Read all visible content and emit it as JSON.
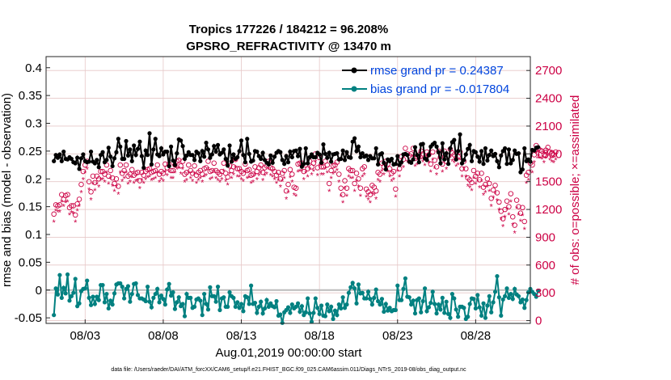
{
  "chart_data": {
    "type": "line",
    "title": "Tropics 177226 / 184212 = 96.208%",
    "subtitle": "GPSRO_REFRACTIVITY @ 13470 m",
    "ylabel_left": "rmse and bias (model - observation)",
    "ylabel_right": "# of obs: o=possible; ×=assimilated",
    "xlabel": "Aug.01,2019 00:00:00 start",
    "footer": "data file: /Users/raeder/DAI/ATM_forcXX/CAM6_setup/f.e21.FHIST_BGC.f09_025.CAM6assim.011/Diags_NTrS_2019-08/obs_diag_output.nc",
    "ylim_left": [
      -0.06,
      0.42
    ],
    "yticks_left": [
      "0.4",
      "0.35",
      "0.3",
      "0.25",
      "0.2",
      "0.15",
      "0.1",
      "0.05",
      "0",
      "-0.05"
    ],
    "ytick_values_left": [
      0.4,
      0.35,
      0.3,
      0.25,
      0.2,
      0.15,
      0.1,
      0.05,
      0,
      -0.05
    ],
    "ylim_right": [
      -30,
      2850
    ],
    "yticks_right": [
      "2700",
      "2400",
      "2100",
      "1800",
      "1500",
      "1200",
      "900",
      "600",
      "300",
      "0"
    ],
    "ytick_values_right": [
      2700,
      2400,
      2100,
      1800,
      1500,
      1200,
      900,
      600,
      300,
      0
    ],
    "xlim": [
      0.5,
      31.5
    ],
    "xticks": [
      "08/03",
      "08/08",
      "08/13",
      "08/18",
      "08/23",
      "08/28"
    ],
    "xtick_values": [
      3,
      8,
      13,
      18,
      23,
      28
    ],
    "legend": [
      {
        "label": "rmse grand pr = 0.24387",
        "color": "#000000"
      },
      {
        "label": "bias grand pr = -0.017804",
        "color": "#008080"
      }
    ],
    "colors": {
      "rmse": "#000000",
      "bias": "#008080",
      "obs": "#cc0044",
      "zero_line": "#bbbbbb",
      "grid": "#e6c8c8"
    },
    "series": [
      {
        "name": "rmse",
        "values": [
          0.232,
          0.243,
          0.238,
          0.244,
          0.232,
          0.249,
          0.236,
          0.235,
          0.239,
          0.236,
          0.23,
          0.228,
          0.238,
          0.218,
          0.237,
          0.244,
          0.232,
          0.23,
          0.231,
          0.249,
          0.231,
          0.228,
          0.234,
          0.221,
          0.243,
          0.248,
          0.23,
          0.234,
          0.256,
          0.24,
          0.223,
          0.237,
          0.248,
          0.272,
          0.258,
          0.236,
          0.236,
          0.268,
          0.242,
          0.253,
          0.232,
          0.26,
          0.243,
          0.254,
          0.267,
          0.241,
          0.22,
          0.251,
          0.243,
          0.282,
          0.226,
          0.253,
          0.272,
          0.244,
          0.241,
          0.255,
          0.244,
          0.249,
          0.249,
          0.223,
          0.258,
          0.233,
          0.225,
          0.246,
          0.271,
          0.269,
          0.259,
          0.236,
          0.242,
          0.248,
          0.243,
          0.243,
          0.234,
          0.249,
          0.246,
          0.232,
          0.25,
          0.24,
          0.265,
          0.253,
          0.238,
          0.244,
          0.259,
          0.249,
          0.261,
          0.244,
          0.247,
          0.253,
          0.236,
          0.224,
          0.26,
          0.231,
          0.244,
          0.236,
          0.239,
          0.25,
          0.269,
          0.243,
          0.23,
          0.272,
          0.245,
          0.231,
          0.233,
          0.25,
          0.249,
          0.241,
          0.236,
          0.247,
          0.234,
          0.229,
          0.226,
          0.242,
          0.229,
          0.24,
          0.247,
          0.25,
          0.248,
          0.234,
          0.227,
          0.241,
          0.23,
          0.249,
          0.239,
          0.25,
          0.251,
          0.241,
          0.254,
          0.222,
          0.227,
          0.255,
          0.228,
          0.239,
          0.244,
          0.239,
          0.239,
          0.247,
          0.244,
          0.229,
          0.262,
          0.245,
          0.238,
          0.247,
          0.231,
          0.244,
          0.245,
          0.246,
          0.235,
          0.236,
          0.251,
          0.234,
          0.248,
          0.239,
          0.238,
          0.267,
          0.273,
          0.25,
          0.258,
          0.239,
          0.246,
          0.24,
          0.242,
          0.234,
          0.241,
          0.237,
          0.237,
          0.255,
          0.226,
          0.244,
          0.246,
          0.229,
          0.217,
          0.235,
          0.232,
          0.236,
          0.226,
          0.227,
          0.241,
          0.225,
          0.23,
          0.244,
          0.245,
          0.243,
          0.231,
          0.229,
          0.235,
          0.257,
          0.243,
          0.23,
          0.262,
          0.263,
          0.237,
          0.234,
          0.243,
          0.258,
          0.262,
          0.265,
          0.258,
          0.248,
          0.228,
          0.264,
          0.235,
          0.246,
          0.227,
          0.255,
          0.266,
          0.27,
          0.235,
          0.25,
          0.28,
          0.228,
          0.234,
          0.244,
          0.254,
          0.261,
          0.232,
          0.25,
          0.248,
          0.24,
          0.231,
          0.25,
          0.227,
          0.255,
          0.233,
          0.243,
          0.251,
          0.241,
          0.245,
          0.232,
          0.221,
          0.242,
          0.25,
          0.255,
          0.227,
          0.253,
          0.228,
          0.234,
          0.251,
          0.245,
          0.246,
          0.212,
          0.217,
          0.255,
          0.232,
          0.235,
          0.231,
          0.252,
          0.251,
          0.256,
          0.257
        ]
      },
      {
        "name": "bias",
        "values": [
          -0.045,
          0.003,
          -0.008,
          0.027,
          -0.014,
          0.004,
          -0.006,
          0.028,
          -0.019,
          -0.011,
          -0.005,
          0.02,
          -0.029,
          -0.024,
          -0.002,
          0.002,
          0.003,
          0.017,
          -0.014,
          -0.027,
          -0.012,
          -0.025,
          -0.012,
          -0.018,
          0.009,
          0.009,
          -0.022,
          -0.007,
          -0.033,
          -0.019,
          -0.026,
          -0.006,
          0.01,
          0.012,
          0.012,
          0.006,
          -0.015,
          0.002,
          0.007,
          -0.021,
          -0.007,
          0.011,
          0.012,
          -0.009,
          -0.015,
          -0.015,
          -0.017,
          -0.02,
          0.006,
          -0.021,
          -0.031,
          -0.014,
          -0.007,
          0.002,
          -0.022,
          -0.01,
          -0.016,
          -0.026,
          0.001,
          0.011,
          -0.01,
          -0.004,
          -0.034,
          -0.022,
          -0.013,
          -0.029,
          -0.025,
          -0.047,
          -0.007,
          -0.014,
          -0.014,
          -0.032,
          -0.03,
          -0.017,
          -0.015,
          -0.019,
          -0.045,
          -0.007,
          -0.025,
          -0.035,
          0.005,
          -0.011,
          -0.011,
          -0.021,
          0.006,
          -0.036,
          -0.015,
          -0.013,
          -0.03,
          -0.03,
          -0.004,
          -0.011,
          -0.014,
          -0.03,
          -0.022,
          -0.032,
          -0.025,
          -0.038,
          -0.011,
          -0.013,
          -0.025,
          0.008,
          -0.025,
          -0.023,
          -0.041,
          -0.03,
          -0.021,
          -0.042,
          -0.033,
          -0.018,
          -0.03,
          -0.024,
          -0.029,
          -0.031,
          -0.02,
          -0.046,
          -0.044,
          -0.059,
          -0.04,
          -0.036,
          -0.031,
          -0.041,
          -0.026,
          -0.033,
          -0.03,
          -0.024,
          -0.039,
          -0.029,
          -0.045,
          -0.04,
          -0.015,
          -0.042,
          -0.057,
          -0.041,
          -0.015,
          -0.032,
          -0.043,
          -0.028,
          -0.046,
          -0.047,
          -0.026,
          -0.038,
          -0.03,
          -0.052,
          -0.037,
          -0.045,
          -0.026,
          -0.033,
          -0.013,
          -0.032,
          -0.026,
          -0.005,
          0.005,
          0.013,
          0.003,
          -0.024,
          0.01,
          -0.006,
          -0.005,
          -0.015,
          -0.015,
          -0.003,
          -0.016,
          -0.026,
          -0.014,
          0.001,
          -0.02,
          -0.026,
          -0.016,
          -0.039,
          -0.025,
          -0.037,
          -0.032,
          -0.038,
          -0.036,
          -0.036,
          0.008,
          -0.018,
          -0.018,
          0.002,
          0.021,
          -0.012,
          -0.013,
          -0.026,
          -0.019,
          -0.042,
          -0.018,
          -0.015,
          -0.04,
          -0.02,
          0.003,
          -0.038,
          -0.031,
          -0.023,
          -0.003,
          -0.025,
          -0.042,
          -0.026,
          -0.035,
          -0.014,
          -0.041,
          -0.021,
          -0.043,
          -0.05,
          -0.007,
          -0.015,
          -0.035,
          -0.048,
          -0.03,
          -0.03,
          -0.032,
          -0.052,
          -0.048,
          -0.025,
          -0.015,
          -0.016,
          -0.033,
          -0.009,
          -0.031,
          -0.046,
          -0.024,
          -0.05,
          -0.028,
          -0.011,
          -0.04,
          -0.022,
          -0.003,
          0.025,
          -0.013,
          -0.046,
          -0.017,
          -0.011,
          0.003,
          -0.014,
          -0.007,
          -0.016,
          0.002,
          -0.008,
          -0.011,
          -0.022,
          -0.017,
          -0.032,
          -0.018,
          -0.004,
          0.002,
          -0.003,
          -0.007,
          -0.012,
          -0.001
        ]
      },
      {
        "name": "obs_possible",
        "values": [
          1150,
          1250,
          1240,
          1250,
          1360,
          1310,
          1350,
          1360,
          1220,
          1240,
          1240,
          1140,
          1260,
          1310,
          1470,
          1610,
          1680,
          1720,
          1500,
          1390,
          1560,
          1490,
          1560,
          1530,
          1610,
          1610,
          1580,
          1680,
          1560,
          1620,
          1540,
          1480,
          1530,
          1450,
          1680,
          1590,
          1620,
          1680,
          1560,
          1580,
          1630,
          1570,
          1590,
          1600,
          1510,
          1600,
          1570,
          1610,
          1630,
          1640,
          1600,
          1610,
          1620,
          1680,
          1580,
          1610,
          1590,
          1690,
          1650,
          1690,
          1620,
          1620,
          1680,
          1720,
          1730,
          1670,
          1720,
          1580,
          1600,
          1680,
          1620,
          1590,
          1670,
          1570,
          1600,
          1620,
          1580,
          1640,
          1650,
          1720,
          1610,
          1620,
          1700,
          1620,
          1600,
          1580,
          1610,
          1700,
          1590,
          1550,
          1670,
          1620,
          1660,
          1740,
          1640,
          1640,
          1610,
          1590,
          1690,
          1620,
          1630,
          1570,
          1580,
          1660,
          1610,
          1650,
          1680,
          1600,
          1650,
          1670,
          1720,
          1650,
          1640,
          1610,
          1570,
          1600,
          1530,
          1590,
          1620,
          1400,
          1470,
          1630,
          1580,
          1440,
          1430,
          1690,
          1700,
          1700,
          1610,
          1680,
          1640,
          1720,
          1660,
          1700,
          1800,
          1650,
          1760,
          1660,
          1660,
          1720,
          1680,
          1480,
          1620,
          1670,
          1680,
          1710,
          1580,
          1430,
          1360,
          1510,
          1430,
          1640,
          1620,
          1620,
          1480,
          1590,
          1530,
          1430,
          1640,
          1660,
          1420,
          1390,
          1360,
          1460,
          1440,
          1400,
          1600,
          1580,
          1700,
          1660,
          1720,
          1690,
          1640,
          1590,
          1610,
          1420,
          1700,
          1640,
          1770,
          1740,
          1860,
          1800,
          1780,
          1800,
          1860,
          1750,
          1770,
          1790,
          1830,
          1800,
          1760,
          1820,
          1790,
          1690,
          1820,
          1730,
          1660,
          1830,
          1770,
          1690,
          1830,
          1720,
          1780,
          1850,
          1810,
          1790,
          1750,
          1770,
          1820,
          1640,
          1720,
          1640,
          1540,
          1520,
          1490,
          1620,
          1560,
          1590,
          1520,
          1590,
          1440,
          1470,
          1530,
          1480,
          1320,
          1410,
          1460,
          1380,
          1280,
          1180,
          1100,
          1200,
          1290,
          1230,
          1370,
          1120,
          1030,
          1300,
          1230,
          1160,
          1220,
          1070,
          1570,
          1600,
          1700,
          1680,
          1790,
          1890,
          1860,
          1840,
          1830,
          1790,
          1840,
          1870,
          1820,
          1800,
          1790,
          1820
        ]
      },
      {
        "name": "obs_assimilated",
        "values": [
          1070,
          1190,
          1180,
          1180,
          1290,
          1240,
          1280,
          1290,
          1150,
          1170,
          1160,
          1070,
          1190,
          1240,
          1390,
          1530,
          1600,
          1640,
          1420,
          1310,
          1480,
          1410,
          1480,
          1450,
          1530,
          1530,
          1500,
          1600,
          1480,
          1540,
          1460,
          1400,
          1450,
          1370,
          1600,
          1510,
          1540,
          1600,
          1480,
          1500,
          1550,
          1490,
          1510,
          1520,
          1430,
          1520,
          1490,
          1530,
          1550,
          1560,
          1520,
          1530,
          1540,
          1600,
          1500,
          1530,
          1510,
          1610,
          1570,
          1610,
          1540,
          1540,
          1600,
          1640,
          1650,
          1590,
          1640,
          1500,
          1520,
          1600,
          1540,
          1510,
          1590,
          1490,
          1520,
          1540,
          1500,
          1560,
          1570,
          1640,
          1530,
          1540,
          1620,
          1540,
          1520,
          1500,
          1530,
          1620,
          1510,
          1470,
          1590,
          1540,
          1580,
          1660,
          1560,
          1560,
          1530,
          1510,
          1610,
          1540,
          1550,
          1490,
          1500,
          1580,
          1530,
          1570,
          1600,
          1520,
          1570,
          1590,
          1640,
          1570,
          1560,
          1530,
          1490,
          1520,
          1450,
          1510,
          1540,
          1320,
          1390,
          1550,
          1500,
          1360,
          1350,
          1610,
          1620,
          1620,
          1530,
          1600,
          1560,
          1640,
          1580,
          1620,
          1720,
          1570,
          1680,
          1580,
          1580,
          1640,
          1600,
          1400,
          1540,
          1590,
          1600,
          1630,
          1500,
          1350,
          1280,
          1430,
          1350,
          1560,
          1540,
          1540,
          1400,
          1510,
          1450,
          1350,
          1560,
          1580,
          1340,
          1310,
          1280,
          1380,
          1360,
          1320,
          1520,
          1500,
          1620,
          1580,
          1640,
          1610,
          1560,
          1510,
          1530,
          1340,
          1620,
          1560,
          1690,
          1660,
          1780,
          1720,
          1700,
          1720,
          1780,
          1670,
          1690,
          1710,
          1750,
          1720,
          1680,
          1740,
          1710,
          1610,
          1740,
          1650,
          1580,
          1750,
          1690,
          1610,
          1750,
          1640,
          1700,
          1770,
          1730,
          1710,
          1670,
          1690,
          1740,
          1560,
          1640,
          1560,
          1460,
          1440,
          1410,
          1540,
          1480,
          1510,
          1440,
          1510,
          1360,
          1390,
          1450,
          1400,
          1240,
          1330,
          1380,
          1300,
          1200,
          1100,
          1020,
          1120,
          1210,
          1150,
          1290,
          1040,
          950,
          1220,
          1150,
          1080,
          1140,
          990,
          1490,
          1520,
          1620,
          1600,
          1710,
          1810,
          1780,
          1760,
          1750,
          1710,
          1760,
          1790,
          1740,
          1720,
          1710,
          1740
        ]
      }
    ]
  }
}
